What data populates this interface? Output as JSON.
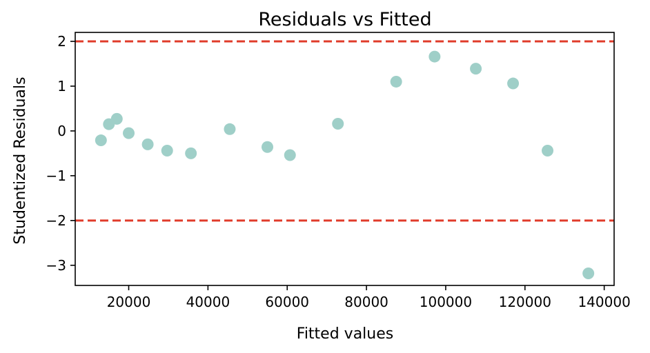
{
  "chart_data": {
    "type": "scatter",
    "title": "Residuals vs Fitted",
    "xlabel": "Fitted values",
    "ylabel": "Studentized Residuals",
    "xlim": [
      6500,
      142500
    ],
    "ylim": [
      -3.45,
      2.2
    ],
    "xticks": [
      20000,
      40000,
      60000,
      80000,
      100000,
      120000,
      140000
    ],
    "xtick_labels": [
      "20000",
      "40000",
      "60000",
      "80000",
      "100000",
      "120000",
      "140000"
    ],
    "yticks": [
      2,
      1,
      0,
      -1,
      -2,
      -3
    ],
    "ytick_labels": [
      "2",
      "1",
      "0",
      "−1",
      "−2",
      "−3"
    ],
    "grid": false,
    "reference_lines": [
      {
        "axis": "y",
        "value": 2,
        "style": "dashed",
        "color": "#e03b2a"
      },
      {
        "axis": "y",
        "value": -2,
        "style": "dashed",
        "color": "#e03b2a"
      }
    ],
    "point_color": "#9fcfc8",
    "points": [
      {
        "x": 13000,
        "y": -0.21
      },
      {
        "x": 15000,
        "y": 0.15
      },
      {
        "x": 17000,
        "y": 0.27
      },
      {
        "x": 20000,
        "y": -0.05
      },
      {
        "x": 24800,
        "y": -0.3
      },
      {
        "x": 29700,
        "y": -0.44
      },
      {
        "x": 35700,
        "y": -0.5
      },
      {
        "x": 45500,
        "y": 0.04
      },
      {
        "x": 55000,
        "y": -0.36
      },
      {
        "x": 60700,
        "y": -0.54
      },
      {
        "x": 72800,
        "y": 0.16
      },
      {
        "x": 87500,
        "y": 1.1
      },
      {
        "x": 97200,
        "y": 1.66
      },
      {
        "x": 107600,
        "y": 1.39
      },
      {
        "x": 117000,
        "y": 1.06
      },
      {
        "x": 125700,
        "y": -0.44
      },
      {
        "x": 136000,
        "y": -3.18
      }
    ]
  }
}
